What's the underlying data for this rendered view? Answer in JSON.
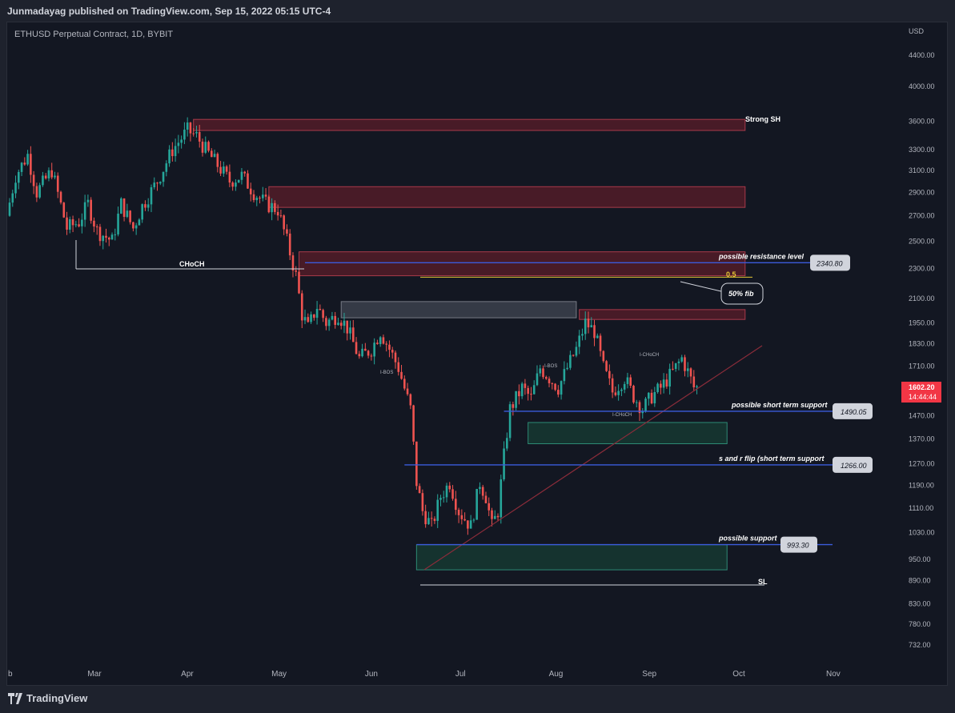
{
  "header": {
    "publish_line": "Junmadayag published on TradingView.com, Sep 15, 2022 05:15 UTC-4"
  },
  "footer": {
    "brand": "TradingView"
  },
  "colors": {
    "bg": "#131722",
    "up": "#26a69a",
    "down": "#ef5350",
    "zone_red": "#5b1e2a",
    "zone_green": "#173b33",
    "line_blue": "#3b5bdb",
    "fib": "#e5c634",
    "price_tag": "#f23645"
  },
  "chart_data": {
    "type": "candlestick",
    "title": "ETHUSD Perpetual Contract, 1D, BYBIT",
    "currency": "USD",
    "y_scale": "log",
    "ylim": [
      700,
      4700
    ],
    "y_ticks": [
      4400,
      4000,
      3600,
      3300,
      3100,
      2900,
      2700,
      2500,
      2300,
      2100,
      1950,
      1830,
      1710,
      1470,
      1370,
      1270,
      1190,
      1110,
      1030,
      950,
      890,
      830,
      780,
      732
    ],
    "y_tick_labels": [
      "4400.00",
      "4000.00",
      "3600.00",
      "3300.00",
      "3100.00",
      "2900.00",
      "2700.00",
      "2500.00",
      "2300.00",
      "2100.00",
      "1950.00",
      "1830.00",
      "1710.00",
      "1470.00",
      "1370.00",
      "1270.00",
      "1190.00",
      "1110.00",
      "1030.00",
      "950.00",
      "890.00",
      "830.00",
      "780.00",
      "732.00"
    ],
    "x_ticks": [
      {
        "label": "b",
        "day": 0
      },
      {
        "label": "Mar",
        "day": 28
      },
      {
        "label": "Apr",
        "day": 59
      },
      {
        "label": "May",
        "day": 89
      },
      {
        "label": "Jun",
        "day": 120
      },
      {
        "label": "Jul",
        "day": 150
      },
      {
        "label": "Aug",
        "day": 181
      },
      {
        "label": "Sep",
        "day": 212
      },
      {
        "label": "Oct",
        "day": 242
      },
      {
        "label": "Nov",
        "day": 273
      }
    ],
    "series_anchors": [
      [
        0,
        2700
      ],
      [
        3,
        3050
      ],
      [
        7,
        3250
      ],
      [
        10,
        2900
      ],
      [
        15,
        3100
      ],
      [
        20,
        2600
      ],
      [
        24,
        2650
      ],
      [
        27,
        2800
      ],
      [
        30,
        2580
      ],
      [
        35,
        2500
      ],
      [
        38,
        2800
      ],
      [
        42,
        2600
      ],
      [
        45,
        2780
      ],
      [
        50,
        3000
      ],
      [
        55,
        3300
      ],
      [
        60,
        3500
      ],
      [
        63,
        3440
      ],
      [
        66,
        3300
      ],
      [
        70,
        3150
      ],
      [
        74,
        3000
      ],
      [
        78,
        3050
      ],
      [
        82,
        2900
      ],
      [
        86,
        2800
      ],
      [
        90,
        2750
      ],
      [
        93,
        2500
      ],
      [
        96,
        2250
      ],
      [
        98,
        2000
      ],
      [
        100,
        1920
      ],
      [
        103,
        2050
      ],
      [
        106,
        1950
      ],
      [
        110,
        2000
      ],
      [
        113,
        1920
      ],
      [
        117,
        1750
      ],
      [
        121,
        1800
      ],
      [
        124,
        1900
      ],
      [
        127,
        1800
      ],
      [
        130,
        1700
      ],
      [
        134,
        1500
      ],
      [
        136,
        1200
      ],
      [
        138,
        1100
      ],
      [
        141,
        1050
      ],
      [
        144,
        1150
      ],
      [
        147,
        1200
      ],
      [
        150,
        1100
      ],
      [
        154,
        1050
      ],
      [
        157,
        1200
      ],
      [
        159,
        1150
      ],
      [
        161,
        1050
      ],
      [
        163,
        1100
      ],
      [
        165,
        1300
      ],
      [
        167,
        1500
      ],
      [
        171,
        1600
      ],
      [
        174,
        1550
      ],
      [
        177,
        1700
      ],
      [
        180,
        1650
      ],
      [
        183,
        1600
      ],
      [
        186,
        1700
      ],
      [
        189,
        1800
      ],
      [
        192,
        1950
      ],
      [
        195,
        1900
      ],
      [
        198,
        1700
      ],
      [
        201,
        1580
      ],
      [
        205,
        1650
      ],
      [
        208,
        1560
      ],
      [
        211,
        1500
      ],
      [
        214,
        1560
      ],
      [
        217,
        1600
      ],
      [
        221,
        1680
      ],
      [
        224,
        1750
      ],
      [
        226,
        1680
      ],
      [
        228,
        1602
      ]
    ],
    "last_price": "1602.20",
    "countdown": "14:44:44",
    "zones": [
      {
        "type": "supply",
        "label": "Strong SH",
        "from_day": 61,
        "to_day": 244,
        "low": 3500,
        "high": 3620
      },
      {
        "type": "supply",
        "from_day": 86,
        "to_day": 244,
        "low": 2770,
        "high": 2950
      },
      {
        "type": "supply",
        "from_day": 96,
        "to_day": 244,
        "low": 2250,
        "high": 2420
      },
      {
        "type": "fvg",
        "from_day": 110,
        "to_day": 188,
        "low": 1980,
        "high": 2080
      },
      {
        "type": "supply",
        "from_day": 189,
        "to_day": 244,
        "low": 1970,
        "high": 2030
      },
      {
        "type": "demand",
        "from_day": 172,
        "to_day": 238,
        "low": 1350,
        "high": 1440
      },
      {
        "type": "demand",
        "from_day": 135,
        "to_day": 238,
        "low": 920,
        "high": 993
      }
    ],
    "levels": [
      {
        "label": "possible resistance level",
        "value": "2340.80",
        "price": 2340.8,
        "from_day": 98
      },
      {
        "label": "possible short term support",
        "value": "1490.05",
        "price": 1490.05,
        "from_day": 164
      },
      {
        "label": "s and r flip (short term support",
        "value": "1266.00",
        "price": 1266,
        "from_day": 131
      },
      {
        "label": "possible support",
        "value": "993.30",
        "price": 993.3,
        "from_day": 135
      }
    ],
    "annotations": {
      "choch": "CHoCH",
      "fib_label": "0.5",
      "fib_callout": "50% fib",
      "ibos": "I-BOS",
      "ibos2": "I-BOS",
      "ichoch1": "I-CHoCH",
      "ichoch2": "I-CHoCH",
      "sl": "SL"
    }
  }
}
